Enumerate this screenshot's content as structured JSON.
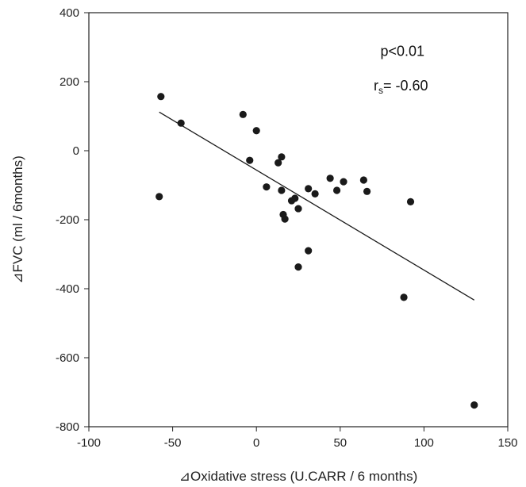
{
  "chart_data": {
    "type": "scatter",
    "title": "",
    "xlabel": "⊿Oxidative stress (U.CARR / 6 months)",
    "ylabel": "⊿FVC  (ml / 6months)",
    "xlim": [
      -100,
      150
    ],
    "ylim": [
      -800,
      400
    ],
    "x_ticks": [
      -100,
      -50,
      0,
      50,
      100,
      150
    ],
    "y_ticks": [
      400,
      200,
      0,
      -200,
      -400,
      -600,
      -800
    ],
    "grid": false,
    "legend": "none",
    "annotations": {
      "p_value": "p<0.01",
      "rs_main": "r",
      "rs_sub": "s",
      "rs_value": "= -0.60"
    },
    "points": [
      {
        "x": -57,
        "y": 157
      },
      {
        "x": -45,
        "y": 80
      },
      {
        "x": -58,
        "y": -133
      },
      {
        "x": -8,
        "y": 105
      },
      {
        "x": 0,
        "y": 58
      },
      {
        "x": -4,
        "y": -28
      },
      {
        "x": 6,
        "y": -105
      },
      {
        "x": 13,
        "y": -35
      },
      {
        "x": 15,
        "y": -18
      },
      {
        "x": 15,
        "y": -115
      },
      {
        "x": 16,
        "y": -185
      },
      {
        "x": 17,
        "y": -198
      },
      {
        "x": 21,
        "y": -145
      },
      {
        "x": 23,
        "y": -138
      },
      {
        "x": 25,
        "y": -168
      },
      {
        "x": 25,
        "y": -337
      },
      {
        "x": 31,
        "y": -110
      },
      {
        "x": 31,
        "y": -290
      },
      {
        "x": 35,
        "y": -125
      },
      {
        "x": 44,
        "y": -80
      },
      {
        "x": 48,
        "y": -115
      },
      {
        "x": 52,
        "y": -90
      },
      {
        "x": 64,
        "y": -85
      },
      {
        "x": 66,
        "y": -118
      },
      {
        "x": 88,
        "y": -425
      },
      {
        "x": 92,
        "y": -148
      },
      {
        "x": 130,
        "y": -737
      }
    ],
    "trendline": {
      "x1": -58,
      "y1": 112,
      "x2": 130,
      "y2": -433
    },
    "colors": {
      "points": "#1a1a1a",
      "line": "#1a1a1a",
      "axis": "#222222"
    }
  }
}
